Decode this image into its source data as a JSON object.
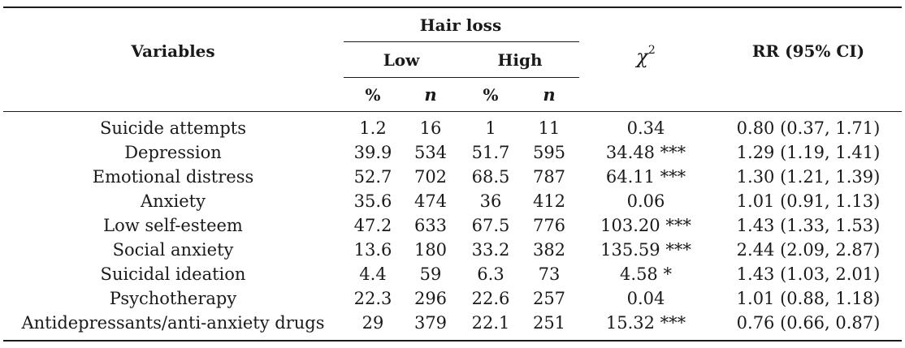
{
  "header": {
    "variables": "Variables",
    "hair_loss": "Hair loss",
    "low": "Low",
    "high": "High",
    "chi_symbol": "χ",
    "chi_sup": "2",
    "rr": "RR (95% CI)",
    "pct": "%",
    "n": "n"
  },
  "rows": [
    [
      "Suicide attempts",
      "1.2",
      "16",
      "1",
      "11",
      "0.34",
      "0.80 (0.37, 1.71)"
    ],
    [
      "Depression",
      "39.9",
      "534",
      "51.7",
      "595",
      "34.48 ***",
      "1.29 (1.19, 1.41)"
    ],
    [
      "Emotional distress",
      "52.7",
      "702",
      "68.5",
      "787",
      "64.11 ***",
      "1.30 (1.21, 1.39)"
    ],
    [
      "Anxiety",
      "35.6",
      "474",
      "36",
      "412",
      "0.06",
      "1.01 (0.91, 1.13)"
    ],
    [
      "Low self-esteem",
      "47.2",
      "633",
      "67.5",
      "776",
      "103.20 ***",
      "1.43 (1.33, 1.53)"
    ],
    [
      "Social anxiety",
      "13.6",
      "180",
      "33.2",
      "382",
      "135.59 ***",
      "2.44 (2.09, 2.87)"
    ],
    [
      "Suicidal ideation",
      "4.4",
      "59",
      "6.3",
      "73",
      "4.58 *",
      "1.43 (1.03, 2.01)"
    ],
    [
      "Psychotherapy",
      "22.3",
      "296",
      "22.6",
      "257",
      "0.04",
      "1.01 (0.88, 1.18)"
    ],
    [
      "Antidepressants/anti-anxiety drugs",
      "29",
      "379",
      "22.1",
      "251",
      "15.32 ***",
      "0.76 (0.66, 0.87)"
    ]
  ]
}
